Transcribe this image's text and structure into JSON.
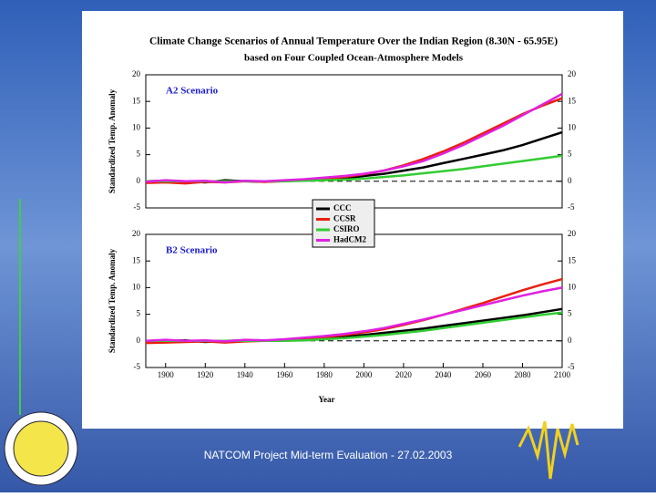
{
  "header": {
    "title": "Climate Change Scenarios of Annual Temperature Over the Indian Region (8.30N - 65.95E)",
    "subtitle": "based on Four Coupled Ocean-Atmosphere Models"
  },
  "footer": "NATCOM Project Mid-term Evaluation - 27.02.2003",
  "chart_data": [
    {
      "type": "line",
      "annotation": "A2 Scenario",
      "y_label": "Standardized Temp. Anomaly",
      "x": [
        1890,
        1900,
        1910,
        1920,
        1930,
        1940,
        1950,
        1960,
        1970,
        1980,
        1990,
        2000,
        2010,
        2020,
        2030,
        2040,
        2050,
        2060,
        2070,
        2080,
        2090,
        2100
      ],
      "series": [
        {
          "name": "CCC",
          "color": "#000000",
          "values": [
            0,
            0.1,
            0,
            -0.2,
            0.2,
            0,
            -0.1,
            0.1,
            0.2,
            0.3,
            0.5,
            1,
            1.4,
            2,
            2.6,
            3.4,
            4.2,
            5,
            5.8,
            6.8,
            8,
            9.2
          ]
        },
        {
          "name": "CCSR",
          "color": "#e8200e",
          "values": [
            -0.3,
            -0.2,
            -0.4,
            -0.1,
            -0.2,
            0,
            -0.1,
            0,
            0.2,
            0.5,
            0.8,
            1.3,
            2,
            3,
            4.2,
            5.6,
            7.2,
            9,
            10.8,
            12.6,
            14.2,
            15.6
          ]
        },
        {
          "name": "CSIRO",
          "color": "#33cc33",
          "values": [
            0,
            0,
            0,
            0,
            0,
            0,
            0,
            0,
            0.1,
            0.2,
            0.3,
            0.5,
            0.8,
            1.1,
            1.5,
            1.9,
            2.3,
            2.8,
            3.3,
            3.8,
            4.3,
            4.8
          ]
        },
        {
          "name": "HadCM2",
          "color": "#e020e0",
          "values": [
            -0.1,
            0.2,
            0,
            0.1,
            -0.2,
            0.1,
            0,
            0.2,
            0.4,
            0.7,
            1,
            1.4,
            2,
            2.8,
            3.8,
            5.2,
            6.8,
            8.6,
            10.4,
            12.4,
            14.4,
            16.4
          ]
        }
      ],
      "xlim": [
        1890,
        2100
      ],
      "ylim": [
        -5,
        20
      ],
      "yticks": [
        20,
        15,
        10,
        5,
        0,
        -5
      ]
    },
    {
      "type": "line",
      "annotation": "B2 Scenario",
      "y_label": "Standardized Temp. Anomaly",
      "x_label": "Year",
      "x": [
        1890,
        1900,
        1910,
        1920,
        1930,
        1940,
        1950,
        1960,
        1970,
        1980,
        1990,
        2000,
        2010,
        2020,
        2030,
        2040,
        2050,
        2060,
        2070,
        2080,
        2090,
        2100
      ],
      "series": [
        {
          "name": "CCC",
          "color": "#000000",
          "values": [
            0,
            0,
            0.1,
            -0.2,
            0,
            0.1,
            0,
            0.2,
            0.3,
            0.5,
            0.8,
            1.1,
            1.5,
            1.9,
            2.3,
            2.8,
            3.3,
            3.8,
            4.3,
            4.8,
            5.4,
            6
          ]
        },
        {
          "name": "CCSR",
          "color": "#e8200e",
          "values": [
            -0.4,
            -0.3,
            -0.2,
            -0.1,
            -0.3,
            -0.1,
            0,
            0.1,
            0.4,
            0.7,
            1.1,
            1.6,
            2.2,
            3,
            3.9,
            4.9,
            6,
            7.1,
            8.3,
            9.5,
            10.6,
            11.6
          ]
        },
        {
          "name": "CSIRO",
          "color": "#33cc33",
          "values": [
            0,
            0,
            0,
            0,
            0,
            0,
            0,
            0,
            0.1,
            0.3,
            0.5,
            0.8,
            1.1,
            1.5,
            1.9,
            2.4,
            2.9,
            3.4,
            3.9,
            4.4,
            4.9,
            5.3
          ]
        },
        {
          "name": "HadCM2",
          "color": "#e020e0",
          "values": [
            0,
            0.2,
            0,
            0.1,
            -0.1,
            0.2,
            0.1,
            0.3,
            0.6,
            0.9,
            1.3,
            1.8,
            2.4,
            3.2,
            4,
            4.9,
            5.8,
            6.7,
            7.6,
            8.5,
            9.3,
            10
          ]
        }
      ],
      "xlim": [
        1890,
        2100
      ],
      "ylim": [
        -5,
        20
      ],
      "yticks": [
        20,
        15,
        10,
        5,
        0,
        -5
      ],
      "xticks": [
        1900,
        1920,
        1940,
        1960,
        1980,
        2000,
        2020,
        2040,
        2060,
        2080,
        2100
      ]
    }
  ]
}
